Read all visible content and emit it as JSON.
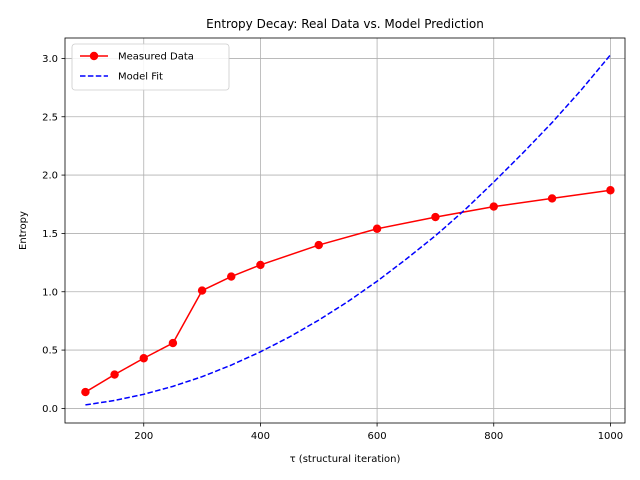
{
  "chart_data": {
    "type": "line",
    "title": "Entropy Decay: Real Data vs. Model Prediction",
    "xlabel": "τ (structural iteration)",
    "ylabel": "Entropy",
    "xlim": [
      65,
      1025
    ],
    "ylim": [
      -0.125,
      3.175
    ],
    "xticks": [
      200,
      400,
      600,
      800,
      1000
    ],
    "yticks": [
      0.0,
      0.5,
      1.0,
      1.5,
      2.0,
      2.5,
      3.0
    ],
    "grid": true,
    "legend_position": "top-left",
    "series": [
      {
        "name": "Measured Data",
        "style": "solid-with-markers",
        "color": "#ff0000",
        "x": [
          100,
          150,
          200,
          250,
          300,
          350,
          400,
          500,
          600,
          700,
          800,
          900,
          1000
        ],
        "y": [
          0.14,
          0.29,
          0.43,
          0.56,
          1.01,
          1.13,
          1.23,
          1.4,
          1.54,
          1.64,
          1.73,
          1.8,
          1.87
        ]
      },
      {
        "name": "Model Fit",
        "style": "dashed",
        "color": "#0000ff",
        "x": [
          100,
          150,
          200,
          250,
          300,
          350,
          400,
          450,
          500,
          550,
          600,
          650,
          700,
          750,
          800,
          850,
          900,
          950,
          1000
        ],
        "y": [
          0.03,
          0.068,
          0.121,
          0.189,
          0.272,
          0.371,
          0.485,
          0.613,
          0.757,
          0.916,
          1.09,
          1.28,
          1.48,
          1.7,
          1.94,
          2.19,
          2.45,
          2.73,
          3.03
        ]
      }
    ]
  }
}
